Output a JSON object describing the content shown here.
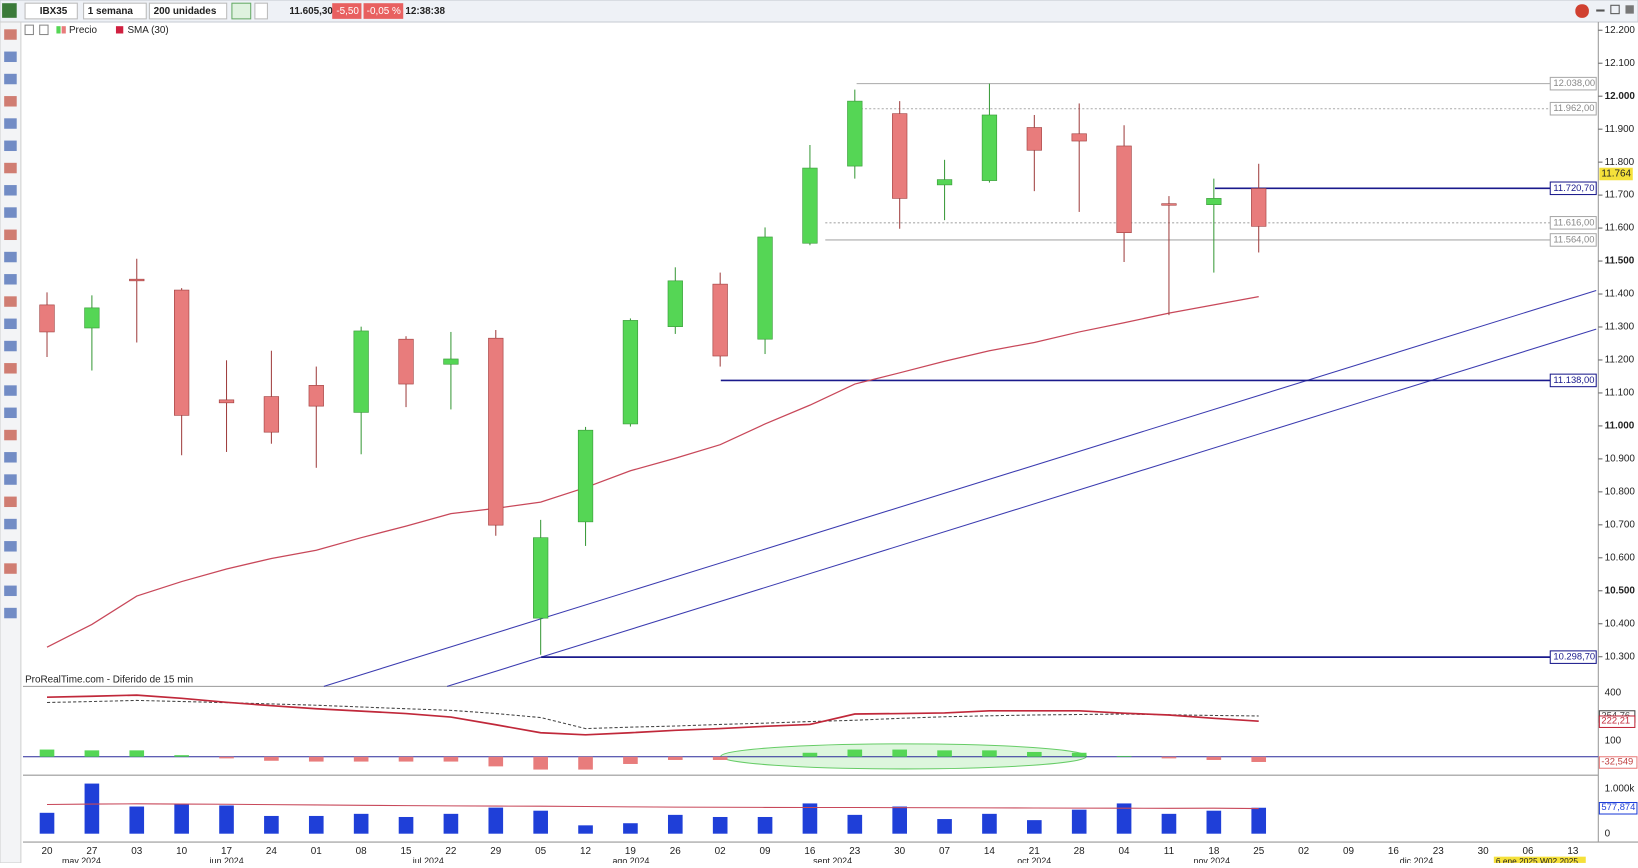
{
  "toolbar": {
    "symbol": "IBX35",
    "timeframe": "1 semana",
    "units": "200 unidades",
    "price": "11.605,30",
    "change": "-5,50",
    "change_pct": "-0,05 %",
    "time": "12:38:38"
  },
  "watermark": "ProRealTime.com - Diferido de 15 min",
  "month_labels": [
    "may 2024",
    "jun 2024",
    "jul 2024",
    "ago 2024",
    "sept 2024",
    "oct 2024",
    "nov 2024",
    "dic 2024"
  ],
  "cursor_label": "6 ene 2025 W02 2025",
  "chart_data": [
    {
      "type": "candlestick",
      "price_name": "Precio",
      "up_color": "#55d655",
      "down_color": "#e87c7c",
      "categories": [
        "20",
        "27",
        "03",
        "10",
        "17",
        "24",
        "01",
        "08",
        "15",
        "22",
        "29",
        "05",
        "12",
        "19",
        "26",
        "02",
        "09",
        "16",
        "23",
        "30",
        "07",
        "14",
        "21",
        "28",
        "04",
        "11",
        "18",
        "25",
        "02",
        "09",
        "16",
        "23",
        "30",
        "06",
        "13"
      ],
      "open": [
        11367,
        11297,
        11445,
        11412,
        11079,
        11089,
        11123,
        11041,
        11263,
        11187,
        11266,
        10417,
        10709,
        11006,
        11301,
        11430,
        11263,
        11554,
        11788,
        11947,
        11731,
        11744,
        11905,
        11886,
        11849,
        11674,
        11671,
        11720,
        null,
        null,
        null,
        null,
        null,
        null,
        null
      ],
      "high": [
        11405,
        11396,
        11507,
        11418,
        11199,
        11228,
        11180,
        11301,
        11272,
        11285,
        11291,
        10715,
        10997,
        11326,
        11481,
        11465,
        11602,
        11852,
        12020,
        11985,
        11807,
        12038,
        11943,
        11978,
        11912,
        11697,
        11750,
        11795,
        null,
        null,
        null,
        null,
        null,
        null,
        null
      ],
      "low": [
        11209,
        11168,
        11253,
        10911,
        10921,
        10946,
        10873,
        10914,
        11057,
        11050,
        10667,
        10306,
        10636,
        10998,
        11279,
        11180,
        11218,
        11548,
        11750,
        11598,
        11624,
        11738,
        11712,
        11649,
        11497,
        11336,
        11465,
        11526,
        null,
        null,
        null,
        null,
        null,
        null,
        null
      ],
      "close": [
        11285,
        11358,
        11440,
        11032,
        11070,
        10981,
        11060,
        11288,
        11127,
        11203,
        10699,
        10661,
        10987,
        11320,
        11440,
        11212,
        11573,
        11782,
        11985,
        11690,
        11747,
        11943,
        11836,
        11864,
        11586,
        11671,
        11690,
        11605.3,
        null,
        null,
        null,
        null,
        null,
        null,
        null
      ],
      "sma": {
        "name": "SMA (30)",
        "color": "#c8485a",
        "values": [
          10329,
          10398,
          10484,
          10528,
          10566,
          10598,
          10623,
          10661,
          10696,
          10734,
          10750,
          10769,
          10813,
          10864,
          10902,
          10943,
          11006,
          11063,
          11127,
          11161,
          11196,
          11228,
          11253,
          11285,
          11313,
          11342,
          11367,
          11392,
          null,
          null,
          null,
          null,
          null,
          null,
          null
        ]
      },
      "levels": [
        {
          "value": 12038,
          "label": "12.038,00",
          "color": "#aaaaaa",
          "style": "solid"
        },
        {
          "value": 11962,
          "label": "11.962,00",
          "color": "#aaaaaa",
          "style": "dotted"
        },
        {
          "value": 11720.7,
          "label": "11.720,70",
          "color": "#1a1a8c",
          "style": "solid"
        },
        {
          "value": 11616,
          "label": "11.616,00",
          "color": "#aaaaaa",
          "style": "dotted"
        },
        {
          "value": 11564,
          "label": "11.564,00",
          "color": "#aaaaaa",
          "style": "solid"
        },
        {
          "value": 11138,
          "label": "11.138,00",
          "color": "#1a1a8c",
          "style": "solid"
        },
        {
          "value": 10298.7,
          "label": "10.298,70",
          "color": "#1a1a8c",
          "style": "solid"
        }
      ],
      "current": {
        "value": 11764,
        "label": "11.764"
      },
      "ylim": [
        10210,
        12225
      ],
      "yticks": [
        {
          "value": 10300,
          "label": "10.300"
        },
        {
          "value": 10400,
          "label": "10.400"
        },
        {
          "value": 10500,
          "label": "10.500"
        },
        {
          "value": 10600,
          "label": "10.600"
        },
        {
          "value": 10700,
          "label": "10.700"
        },
        {
          "value": 10800,
          "label": "10.800"
        },
        {
          "value": 10900,
          "label": "10.900"
        },
        {
          "value": 11000,
          "label": "11.000"
        },
        {
          "value": 11100,
          "label": "11.100"
        },
        {
          "value": 11200,
          "label": "11.200"
        },
        {
          "value": 11300,
          "label": "11.300"
        },
        {
          "value": 11400,
          "label": "11.400"
        },
        {
          "value": 11500,
          "label": "11.500"
        },
        {
          "value": 11600,
          "label": "11.600"
        },
        {
          "value": 11700,
          "label": "11.700"
        },
        {
          "value": 11800,
          "label": "11.800"
        },
        {
          "value": 11900,
          "label": "11.900"
        },
        {
          "value": 12000,
          "label": "12.000"
        },
        {
          "value": 12100,
          "label": "12.100"
        },
        {
          "value": 12200,
          "label": "12.200"
        }
      ]
    },
    {
      "type": "macd",
      "ylim": [
        -102,
        420
      ],
      "yticks": [
        400,
        100
      ],
      "series": [
        {
          "color": "#444444",
          "style": "dotted",
          "values": [
            339,
            345,
            352,
            345,
            338,
            330,
            322,
            311,
            300,
            290,
            270,
            245,
            176,
            185,
            192,
            202,
            210,
            220,
            228,
            240,
            250,
            256,
            261,
            264,
            267,
            262,
            258,
            254.76
          ],
          "last_label": "254,76"
        },
        {
          "color": "#c0283a",
          "style": "solid",
          "values": [
            372,
            378,
            385,
            365,
            340,
            319,
            300,
            285,
            270,
            248,
            200,
            150,
            137,
            150,
            165,
            176,
            190,
            202,
            267,
            270,
            274,
            287,
            287,
            287,
            272,
            261,
            240,
            222.21
          ],
          "last_label": "222,21"
        }
      ],
      "histogram": {
        "color": "#e87c7c",
        "up_color": "#55d655",
        "values": [
          45,
          40,
          40,
          10,
          -10,
          -25,
          -30,
          -30,
          -30,
          -30,
          -60,
          -80,
          -80,
          -45,
          -20,
          -20,
          0,
          25,
          45,
          45,
          40,
          40,
          30,
          25,
          5,
          -10,
          -20,
          -32.549
        ],
        "last_label": "-32,549"
      }
    },
    {
      "type": "volume",
      "ylim": [
        -186,
        1233
      ],
      "yticks": [
        {
          "value": 1000,
          "label": "1.000k"
        },
        0
      ],
      "color": "#1f3fd8",
      "ma_color": "#c8485a",
      "values": [
        465,
        1116,
        605,
        651,
        628,
        395,
        395,
        442,
        372,
        442,
        581,
        512,
        186,
        233,
        419,
        372,
        372,
        674,
        419,
        605,
        326,
        442,
        302,
        535,
        674,
        442,
        512,
        577.874
      ],
      "last_label": "577,874",
      "ma": [
        650,
        660,
        665,
        660,
        655,
        648,
        640,
        632,
        625,
        620,
        615,
        612,
        605,
        598,
        592,
        588,
        585,
        584,
        583,
        580,
        578,
        575,
        572,
        570,
        568,
        565,
        568,
        560
      ]
    }
  ]
}
